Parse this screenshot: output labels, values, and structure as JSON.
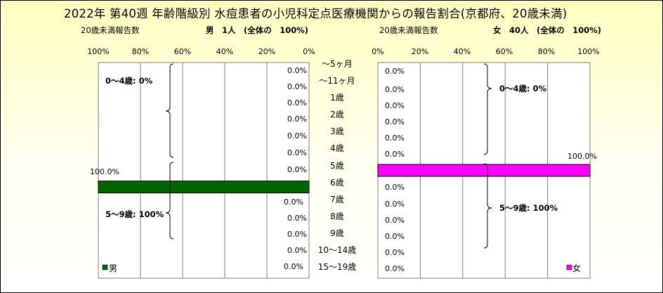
{
  "title": "2022年 第40週 年齢階級別 水痘患者の小児科定点医療機関からの報告割合(京都府、20歳未満)",
  "colors": {
    "male": "#006400",
    "female": "#FF00FF",
    "background_top": "#FFFFC0"
  },
  "chart_data": [
    {
      "type": "bar",
      "orientation": "horizontal",
      "subtitle_left": "20歳未満報告数",
      "subtitle_right": "男　1人　(全体の　100%)",
      "legend": "男",
      "categories": [
        "～5ヶ月",
        "～11ヶ月",
        "1歳",
        "2歳",
        "3歳",
        "4歳",
        "5歳",
        "6歳",
        "7歳",
        "8歳",
        "9歳",
        "10～14歳",
        "15～19歳"
      ],
      "values": [
        0,
        0,
        0,
        0,
        0,
        0,
        0,
        100,
        0,
        0,
        0,
        0,
        0
      ],
      "value_labels": [
        "0.0%",
        "0.0%",
        "0.0%",
        "0.0%",
        "0.0%",
        "0.0%",
        "0.0%",
        "100.0%",
        "0.0%",
        "0.0%",
        "0.0%",
        "0.0%",
        "0.0%"
      ],
      "xticks": [
        "100%",
        "80%",
        "60%",
        "40%",
        "20%",
        "0%"
      ],
      "xlim": [
        0,
        100
      ],
      "group_labels": [
        "0～4歳: 0%",
        "5～9歳: 100%"
      ]
    },
    {
      "type": "bar",
      "orientation": "horizontal",
      "subtitle_left": "20歳未満報告数",
      "subtitle_right": "女　40人　(全体の　100%)",
      "legend": "女",
      "categories": [
        "～5ヶ月",
        "～11ヶ月",
        "1歳",
        "2歳",
        "3歳",
        "4歳",
        "5歳",
        "6歳",
        "7歳",
        "8歳",
        "9歳",
        "10～14歳",
        "15～19歳"
      ],
      "values": [
        0,
        0,
        0,
        0,
        0,
        0,
        100,
        0,
        0,
        0,
        0,
        0,
        0
      ],
      "value_labels": [
        "0.0%",
        "0.0%",
        "0.0%",
        "0.0%",
        "0.0%",
        "0.0%",
        "100.0%",
        "0.0%",
        "0.0%",
        "0.0%",
        "0.0%",
        "0.0%",
        "0.0%"
      ],
      "xticks": [
        "0%",
        "20%",
        "40%",
        "60%",
        "80%",
        "100%"
      ],
      "xlim": [
        0,
        100
      ],
      "group_labels": [
        "0～4歳: 0%",
        "5～9歳: 100%"
      ]
    }
  ]
}
